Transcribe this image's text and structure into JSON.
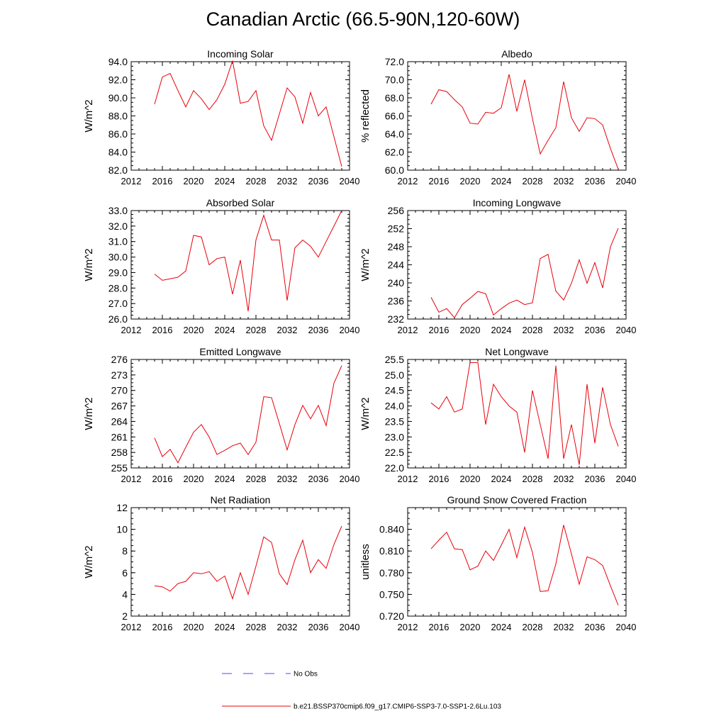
{
  "figure": {
    "title": "Canadian Arctic (66.5-90N,120-60W)",
    "legend": [
      {
        "label": "No Obs",
        "color": "#4a4aff",
        "style": "dashed"
      },
      {
        "label": "b.e21.BSSP370cmip6.f09_g17.CMIP6-SSP3-7.0-SSP1-2.6Lu.103",
        "color": "#e8000b",
        "style": "solid"
      }
    ]
  },
  "chart_data": [
    {
      "type": "line",
      "title": "Incoming Solar",
      "xlabel": "",
      "ylabel": "W/m^2",
      "xlim": [
        2012,
        2040
      ],
      "xticks": [
        "2012",
        "2016",
        "2020",
        "2024",
        "2028",
        "2032",
        "2036",
        "2040"
      ],
      "ylim": [
        82,
        94
      ],
      "yticks": [
        "82.0",
        "84.0",
        "86.0",
        "88.0",
        "90.0",
        "92.0",
        "94.0"
      ],
      "series": [
        {
          "name": "b.e21.BSSP370cmip6.f09_g17.CMIP6-SSP3-7.0-SSP1-2.6Lu.103",
          "color": "#e8000b",
          "x": [
            2015,
            2016,
            2017,
            2018,
            2019,
            2020,
            2021,
            2022,
            2023,
            2024,
            2025,
            2026,
            2027,
            2028,
            2029,
            2030,
            2031,
            2032,
            2033,
            2034,
            2035,
            2036,
            2037,
            2038,
            2039
          ],
          "y": [
            89.3,
            92.3,
            92.7,
            90.8,
            89.0,
            90.8,
            89.9,
            88.7,
            89.8,
            91.5,
            94.1,
            89.4,
            89.6,
            90.8,
            86.9,
            85.3,
            88.2,
            91.1,
            90.1,
            87.2,
            90.6,
            88.0,
            89.0,
            85.7,
            82.4
          ]
        }
      ]
    },
    {
      "type": "line",
      "title": "Albedo",
      "xlabel": "",
      "ylabel": "% reflected",
      "xlim": [
        2012,
        2040
      ],
      "xticks": [
        "2012",
        "2016",
        "2020",
        "2024",
        "2028",
        "2032",
        "2036",
        "2040"
      ],
      "ylim": [
        60,
        72
      ],
      "yticks": [
        "60.0",
        "62.0",
        "64.0",
        "66.0",
        "68.0",
        "70.0",
        "72.0"
      ],
      "series": [
        {
          "name": "b.e21.BSSP370cmip6.f09_g17.CMIP6-SSP3-7.0-SSP1-2.6Lu.103",
          "color": "#e8000b",
          "x": [
            2015,
            2016,
            2017,
            2018,
            2019,
            2020,
            2021,
            2022,
            2023,
            2024,
            2025,
            2026,
            2027,
            2028,
            2029,
            2030,
            2031,
            2032,
            2033,
            2034,
            2035,
            2036,
            2037,
            2038,
            2039
          ],
          "y": [
            67.3,
            68.9,
            68.7,
            67.8,
            67.0,
            65.2,
            65.1,
            66.4,
            66.3,
            66.9,
            70.6,
            66.5,
            70.0,
            65.7,
            61.8,
            63.3,
            64.7,
            69.8,
            65.8,
            64.3,
            65.8,
            65.7,
            65.0,
            62.4,
            60.1
          ]
        }
      ]
    },
    {
      "type": "line",
      "title": "Absorbed Solar",
      "xlabel": "",
      "ylabel": "W/m^2",
      "xlim": [
        2012,
        2040
      ],
      "xticks": [
        "2012",
        "2016",
        "2020",
        "2024",
        "2028",
        "2032",
        "2036",
        "2040"
      ],
      "ylim": [
        26,
        33
      ],
      "yticks": [
        "26.0",
        "27.0",
        "28.0",
        "29.0",
        "30.0",
        "31.0",
        "32.0",
        "33.0"
      ],
      "series": [
        {
          "name": "b.e21.BSSP370cmip6.f09_g17.CMIP6-SSP3-7.0-SSP1-2.6Lu.103",
          "color": "#e8000b",
          "x": [
            2015,
            2016,
            2017,
            2018,
            2019,
            2020,
            2021,
            2022,
            2023,
            2024,
            2025,
            2026,
            2027,
            2028,
            2029,
            2030,
            2031,
            2032,
            2033,
            2034,
            2035,
            2036,
            2037,
            2038,
            2039
          ],
          "y": [
            28.9,
            28.5,
            28.6,
            28.7,
            29.1,
            31.4,
            31.3,
            29.5,
            29.9,
            30.0,
            27.6,
            29.8,
            26.5,
            31.1,
            32.7,
            31.1,
            31.1,
            27.2,
            30.6,
            31.1,
            30.7,
            30.0,
            31.0,
            32.0,
            33.0
          ]
        }
      ]
    },
    {
      "type": "line",
      "title": "Incoming Longwave",
      "xlabel": "",
      "ylabel": "W/m^2",
      "xlim": [
        2012,
        2040
      ],
      "xticks": [
        "2012",
        "2016",
        "2020",
        "2024",
        "2028",
        "2032",
        "2036",
        "2040"
      ],
      "ylim": [
        232,
        256
      ],
      "yticks": [
        "232",
        "236",
        "240",
        "244",
        "248",
        "252",
        "256"
      ],
      "series": [
        {
          "name": "b.e21.BSSP370cmip6.f09_g17.CMIP6-SSP3-7.0-SSP1-2.6Lu.103",
          "color": "#e8000b",
          "x": [
            2015,
            2016,
            2017,
            2018,
            2019,
            2020,
            2021,
            2022,
            2023,
            2024,
            2025,
            2026,
            2027,
            2028,
            2029,
            2030,
            2031,
            2032,
            2033,
            2034,
            2035,
            2036,
            2037,
            2038,
            2039
          ],
          "y": [
            236.8,
            233.5,
            234.3,
            232.3,
            235.2,
            236.6,
            238.1,
            237.6,
            232.9,
            234.3,
            235.5,
            236.2,
            235.2,
            235.6,
            245.4,
            246.3,
            238.2,
            236.2,
            239.9,
            245.1,
            239.9,
            244.5,
            238.9,
            248.0,
            252.1
          ]
        }
      ]
    },
    {
      "type": "line",
      "title": "Emitted Longwave",
      "xlabel": "",
      "ylabel": "W/m^2",
      "xlim": [
        2012,
        2040
      ],
      "xticks": [
        "2012",
        "2016",
        "2020",
        "2024",
        "2028",
        "2032",
        "2036",
        "2040"
      ],
      "ylim": [
        255,
        276
      ],
      "yticks": [
        "255",
        "258",
        "261",
        "264",
        "267",
        "270",
        "273",
        "276"
      ],
      "series": [
        {
          "name": "b.e21.BSSP370cmip6.f09_g17.CMIP6-SSP3-7.0-SSP1-2.6Lu.103",
          "color": "#e8000b",
          "x": [
            2015,
            2016,
            2017,
            2018,
            2019,
            2020,
            2021,
            2022,
            2023,
            2024,
            2025,
            2026,
            2027,
            2028,
            2029,
            2030,
            2031,
            2032,
            2033,
            2034,
            2035,
            2036,
            2037,
            2038,
            2039
          ],
          "y": [
            260.8,
            257.2,
            258.6,
            256.0,
            259.0,
            261.9,
            263.4,
            261.0,
            257.6,
            258.4,
            259.3,
            259.8,
            257.6,
            260.0,
            268.8,
            268.6,
            263.6,
            258.5,
            263.4,
            267.1,
            264.5,
            267.1,
            263.2,
            271.4,
            274.8
          ]
        }
      ]
    },
    {
      "type": "line",
      "title": "Net Longwave",
      "xlabel": "",
      "ylabel": "W/m^2",
      "xlim": [
        2012,
        2040
      ],
      "xticks": [
        "2012",
        "2016",
        "2020",
        "2024",
        "2028",
        "2032",
        "2036",
        "2040"
      ],
      "ylim": [
        22.0,
        25.5
      ],
      "yticks": [
        "22.0",
        "22.5",
        "23.0",
        "23.5",
        "24.0",
        "24.5",
        "25.0",
        "25.5"
      ],
      "series": [
        {
          "name": "b.e21.BSSP370cmip6.f09_g17.CMIP6-SSP3-7.0-SSP1-2.6Lu.103",
          "color": "#e8000b",
          "x": [
            2015,
            2016,
            2017,
            2018,
            2019,
            2020,
            2021,
            2022,
            2023,
            2024,
            2025,
            2026,
            2027,
            2028,
            2029,
            2030,
            2031,
            2032,
            2033,
            2034,
            2035,
            2036,
            2037,
            2038,
            2039
          ],
          "y": [
            24.1,
            23.9,
            24.3,
            23.8,
            23.9,
            25.4,
            25.4,
            23.4,
            24.7,
            24.3,
            24.0,
            23.8,
            22.5,
            24.5,
            23.4,
            22.3,
            25.3,
            22.3,
            23.4,
            22.1,
            24.7,
            22.8,
            24.6,
            23.4,
            22.7
          ]
        }
      ]
    },
    {
      "type": "line",
      "title": "Net Radiation",
      "xlabel": "",
      "ylabel": "W/m^2",
      "xlim": [
        2012,
        2040
      ],
      "xticks": [
        "2012",
        "2016",
        "2020",
        "2024",
        "2028",
        "2032",
        "2036",
        "2040"
      ],
      "ylim": [
        2,
        12
      ],
      "yticks": [
        "2",
        "4",
        "6",
        "8",
        "10",
        "12"
      ],
      "series": [
        {
          "name": "b.e21.BSSP370cmip6.f09_g17.CMIP6-SSP3-7.0-SSP1-2.6Lu.103",
          "color": "#e8000b",
          "x": [
            2015,
            2016,
            2017,
            2018,
            2019,
            2020,
            2021,
            2022,
            2023,
            2024,
            2025,
            2026,
            2027,
            2028,
            2029,
            2030,
            2031,
            2032,
            2033,
            2034,
            2035,
            2036,
            2037,
            2038,
            2039
          ],
          "y": [
            4.8,
            4.7,
            4.3,
            5.0,
            5.2,
            6.0,
            5.9,
            6.1,
            5.2,
            5.7,
            3.6,
            6.0,
            4.0,
            6.6,
            9.3,
            8.8,
            5.9,
            4.9,
            7.2,
            9.0,
            6.0,
            7.2,
            6.4,
            8.6,
            10.3
          ]
        }
      ]
    },
    {
      "type": "line",
      "title": "Ground Snow Covered Fraction",
      "xlabel": "",
      "ylabel": "unitless",
      "xlim": [
        2012,
        2040
      ],
      "xticks": [
        "2012",
        "2016",
        "2020",
        "2024",
        "2028",
        "2032",
        "2036",
        "2040"
      ],
      "ylim": [
        0.72,
        0.87
      ],
      "yticks": [
        "0.720",
        "0.750",
        "0.780",
        "0.810",
        "0.840"
      ],
      "series": [
        {
          "name": "b.e21.BSSP370cmip6.f09_g17.CMIP6-SSP3-7.0-SSP1-2.6Lu.103",
          "color": "#e8000b",
          "x": [
            2015,
            2016,
            2017,
            2018,
            2019,
            2020,
            2021,
            2022,
            2023,
            2024,
            2025,
            2026,
            2027,
            2028,
            2029,
            2030,
            2031,
            2032,
            2033,
            2034,
            2035,
            2036,
            2037,
            2038,
            2039
          ],
          "y": [
            0.813,
            0.825,
            0.836,
            0.813,
            0.812,
            0.784,
            0.789,
            0.81,
            0.797,
            0.818,
            0.84,
            0.801,
            0.843,
            0.808,
            0.754,
            0.755,
            0.792,
            0.846,
            0.806,
            0.764,
            0.802,
            0.798,
            0.79,
            0.762,
            0.735
          ]
        }
      ]
    }
  ]
}
